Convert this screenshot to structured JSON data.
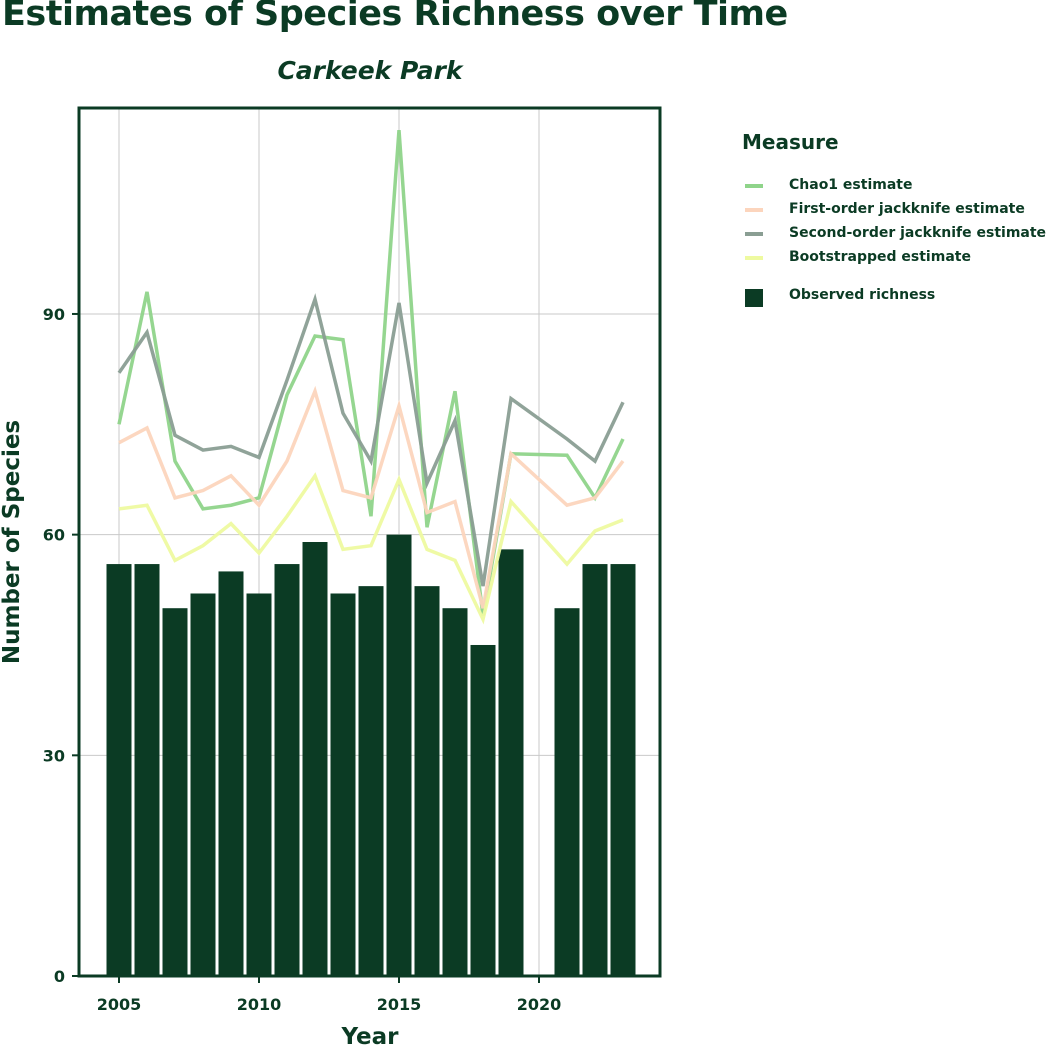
{
  "chart_data": {
    "type": "bar+line",
    "title": "Estimates of Species Richness over Time",
    "subtitle": "Carkeek Park",
    "xlabel": "Year",
    "ylabel": "Number of Species",
    "x_ticks": [
      2005,
      2010,
      2015,
      2020
    ],
    "y_ticks": [
      0,
      30,
      60,
      90
    ],
    "xlim": [
      2003.2,
      2024.4
    ],
    "ylim": [
      0,
      118
    ],
    "grid": true,
    "legend_title": "Measure",
    "legend_position": "right",
    "bars": {
      "name": "Observed richness",
      "color": "#0b3b24",
      "x": [
        2005,
        2006,
        2007,
        2008,
        2009,
        2010,
        2011,
        2012,
        2013,
        2014,
        2015,
        2016,
        2017,
        2018,
        2019,
        2021,
        2022,
        2023
      ],
      "values": [
        56,
        56,
        50,
        52,
        55,
        52,
        56,
        59,
        52,
        53,
        60,
        53,
        50,
        45,
        58,
        50,
        56,
        56
      ]
    },
    "series": [
      {
        "name": "Chao1 estimate",
        "color": "#8fd48a",
        "x": [
          2005,
          2006,
          2007,
          2008,
          2009,
          2010,
          2011,
          2012,
          2013,
          2014,
          2015,
          2016,
          2017,
          2018,
          2019,
          2021,
          2022,
          2023
        ],
        "values": [
          75,
          93,
          70,
          63.5,
          64,
          65,
          79,
          87,
          86.5,
          62.5,
          115,
          61,
          79.5,
          49,
          71,
          70.8,
          65,
          73
        ]
      },
      {
        "name": "First-order jackknife estimate",
        "color": "#fcd5bd",
        "x": [
          2005,
          2006,
          2007,
          2008,
          2009,
          2010,
          2011,
          2012,
          2013,
          2014,
          2015,
          2016,
          2017,
          2018,
          2019,
          2021,
          2022,
          2023
        ],
        "values": [
          72.5,
          74.5,
          65,
          66,
          68,
          64,
          70,
          79.5,
          66,
          65,
          77.5,
          63,
          64.5,
          50,
          71,
          64,
          65,
          70
        ]
      },
      {
        "name": "Second-order jackknife estimate",
        "color": "#8a9e93",
        "x": [
          2005,
          2006,
          2007,
          2008,
          2009,
          2010,
          2011,
          2012,
          2013,
          2014,
          2015,
          2016,
          2017,
          2018,
          2019,
          2021,
          2022,
          2023
        ],
        "values": [
          82,
          87.5,
          73.5,
          71.5,
          72,
          70.5,
          81,
          92,
          76.5,
          70,
          91.5,
          67,
          75.5,
          53,
          78.5,
          73,
          70,
          78
        ]
      },
      {
        "name": "Bootstrapped estimate",
        "color": "#eefaa0",
        "x": [
          2005,
          2006,
          2007,
          2008,
          2009,
          2010,
          2011,
          2012,
          2013,
          2014,
          2015,
          2016,
          2017,
          2018,
          2019,
          2021,
          2022,
          2023
        ],
        "values": [
          63.5,
          64,
          56.5,
          58.5,
          61.5,
          57.5,
          62.5,
          68,
          58,
          58.5,
          67.5,
          58,
          56.5,
          48.5,
          64.5,
          56,
          60.5,
          62
        ]
      }
    ]
  }
}
